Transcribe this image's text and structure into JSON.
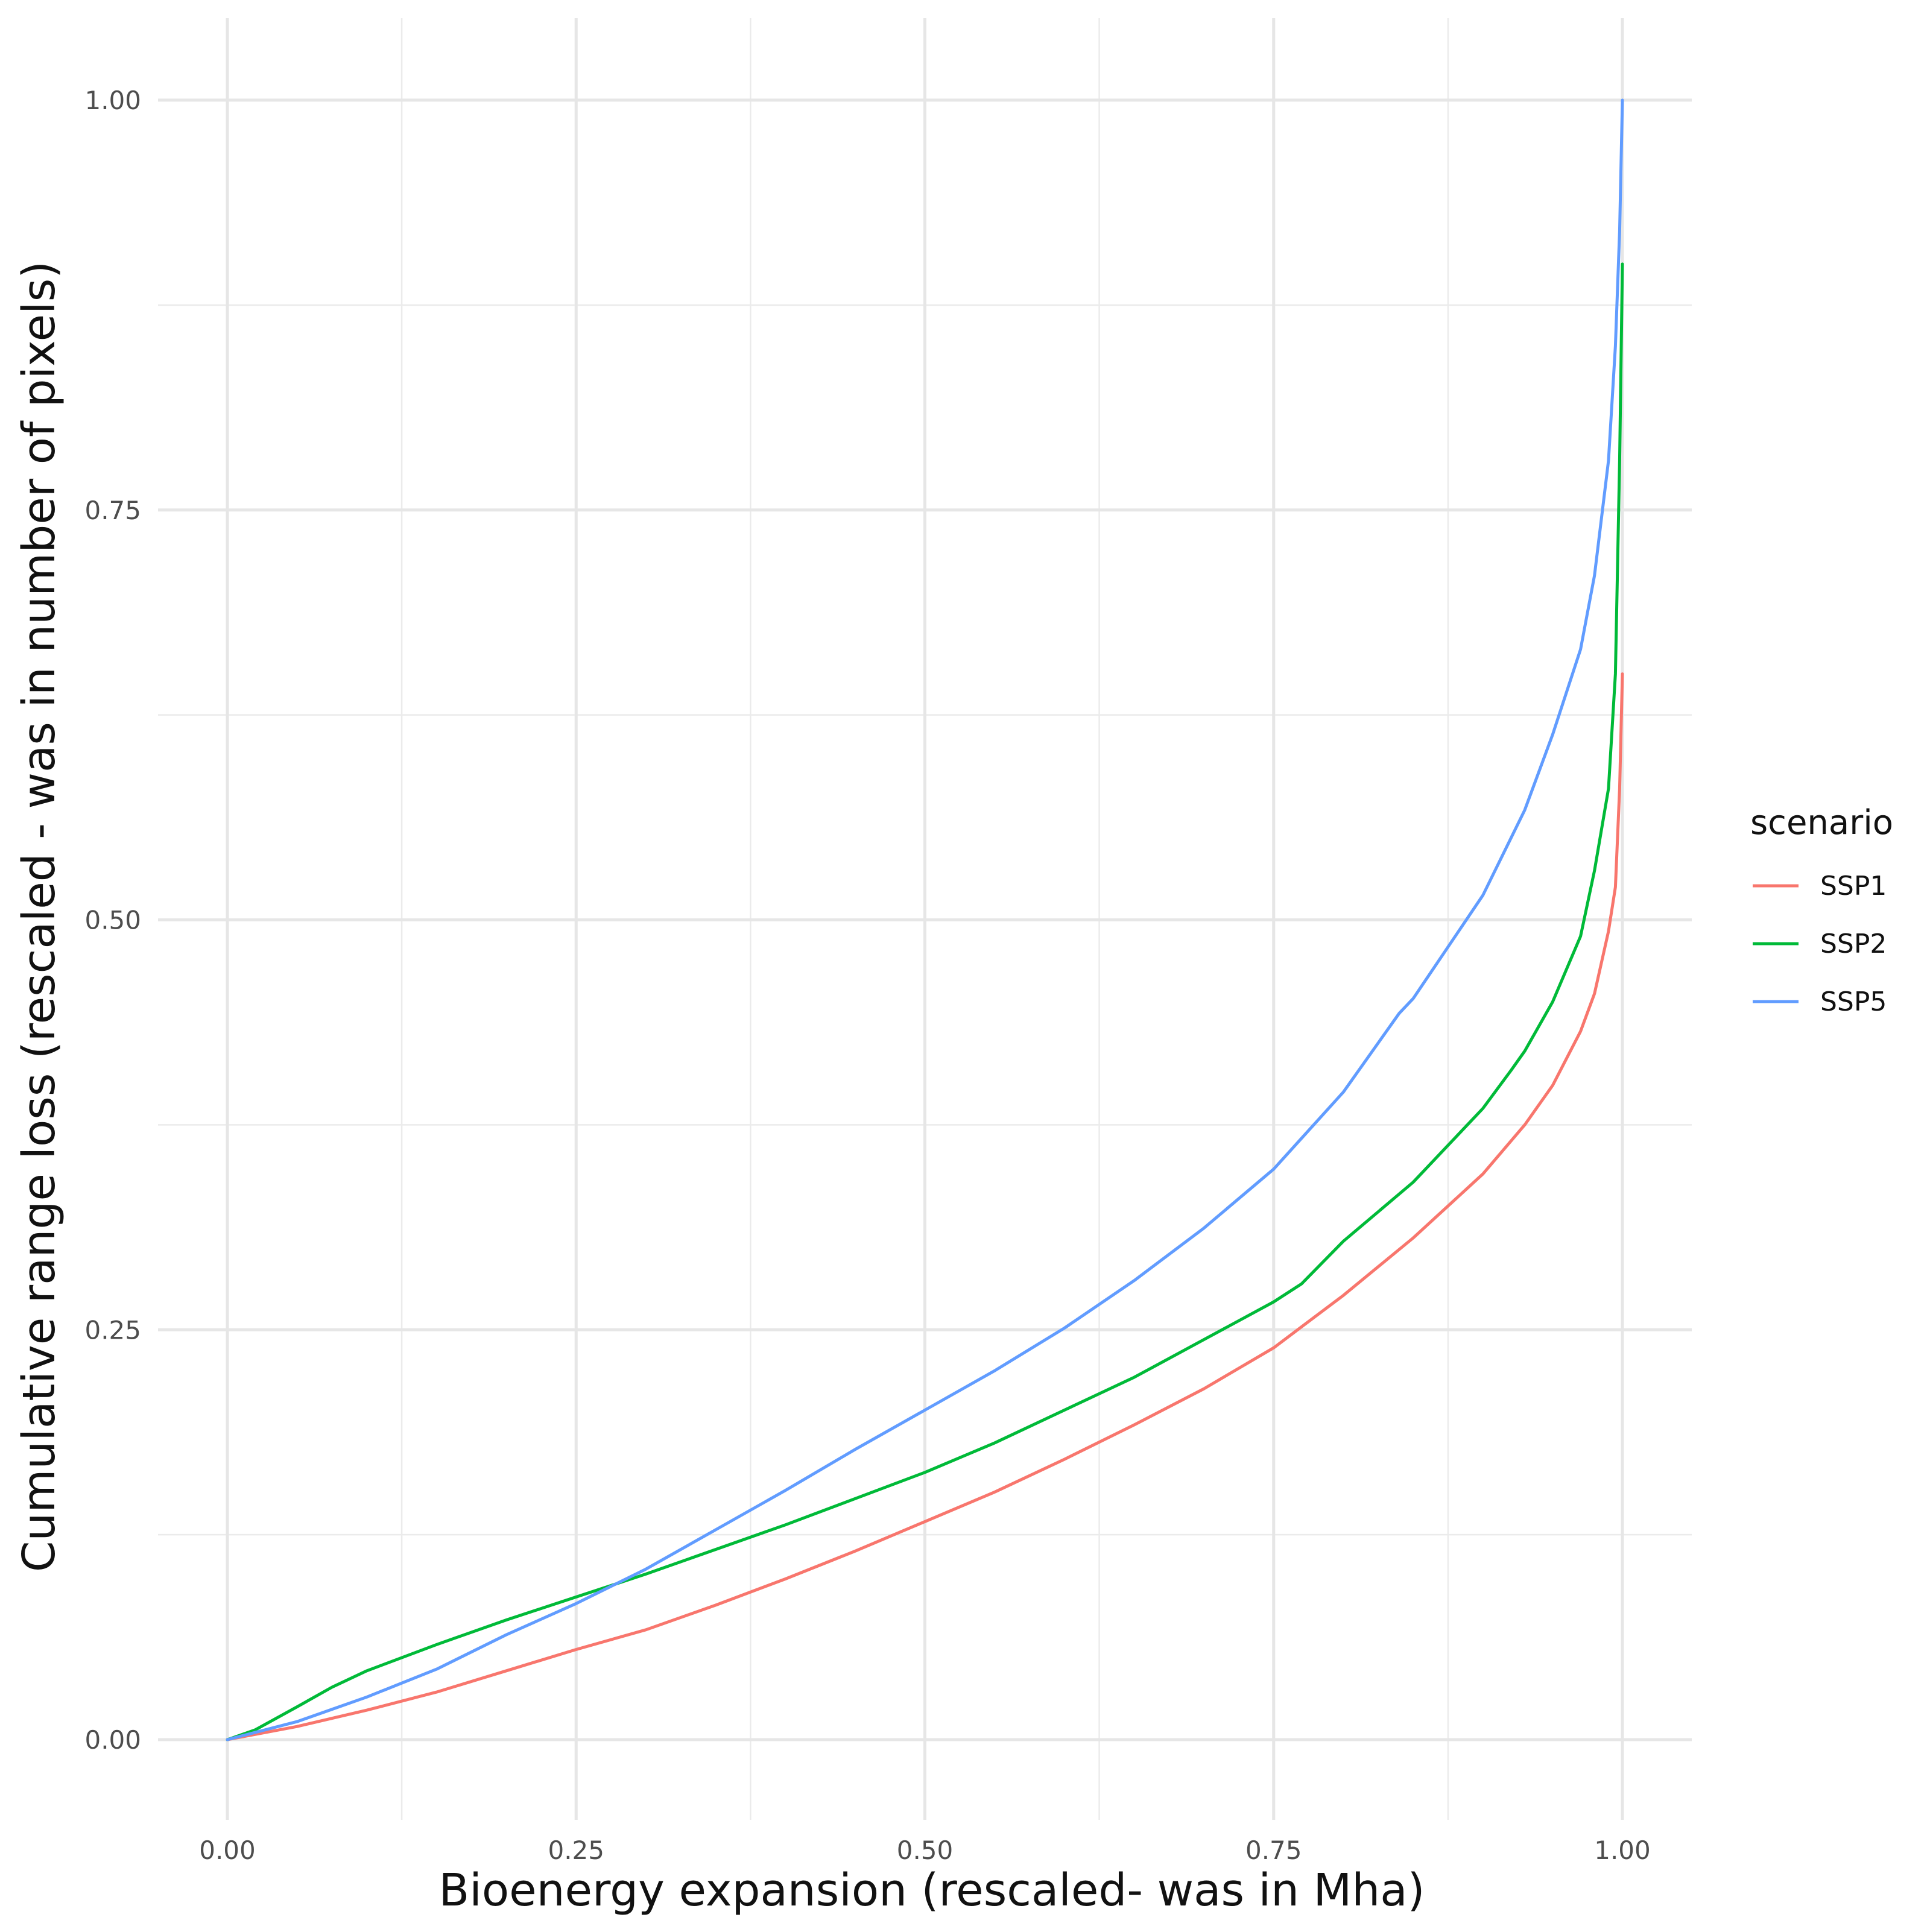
{
  "chart_data": {
    "type": "line",
    "title": "",
    "xlabel": "Bioenergy expansion (rescaled- was in Mha)",
    "ylabel": "Cumulative range loss (rescaled - was in number of pixels)",
    "xlim": [
      -0.05,
      1.05
    ],
    "ylim": [
      -0.05,
      1.05
    ],
    "x_ticks": [
      0.0,
      0.25,
      0.5,
      0.75,
      1.0
    ],
    "x_tick_labels": [
      "0.00",
      "0.25",
      "0.50",
      "0.75",
      "1.00"
    ],
    "y_ticks": [
      0.0,
      0.25,
      0.5,
      0.75,
      1.0
    ],
    "y_tick_labels": [
      "0.00",
      "0.25",
      "0.50",
      "0.75",
      "1.00"
    ],
    "x_minor_ticks": [
      0.125,
      0.375,
      0.625,
      0.875
    ],
    "y_minor_ticks": [
      0.125,
      0.375,
      0.625,
      0.875
    ],
    "grid": true,
    "legend": {
      "title": "scenario",
      "position": "right"
    },
    "series": [
      {
        "name": "SSP1",
        "color": "#F8766D",
        "x": [
          0.0,
          0.05,
          0.1,
          0.15,
          0.2,
          0.25,
          0.3,
          0.35,
          0.4,
          0.45,
          0.5,
          0.55,
          0.6,
          0.65,
          0.7,
          0.75,
          0.8,
          0.85,
          0.9,
          0.93,
          0.95,
          0.97,
          0.98,
          0.99,
          0.995,
          0.998,
          1.0
        ],
        "y": [
          0.0,
          0.008,
          0.018,
          0.029,
          0.042,
          0.055,
          0.067,
          0.082,
          0.098,
          0.115,
          0.133,
          0.151,
          0.171,
          0.192,
          0.214,
          0.239,
          0.271,
          0.306,
          0.345,
          0.375,
          0.399,
          0.432,
          0.455,
          0.493,
          0.52,
          0.58,
          0.65
        ]
      },
      {
        "name": "SSP2",
        "color": "#00BA38",
        "x": [
          0.0,
          0.02,
          0.05,
          0.075,
          0.1,
          0.15,
          0.2,
          0.25,
          0.3,
          0.35,
          0.4,
          0.45,
          0.5,
          0.55,
          0.6,
          0.65,
          0.7,
          0.75,
          0.77,
          0.8,
          0.85,
          0.9,
          0.92,
          0.93,
          0.95,
          0.97,
          0.98,
          0.99,
          0.995,
          0.998,
          1.0
        ],
        "y": [
          0.0,
          0.006,
          0.02,
          0.032,
          0.042,
          0.058,
          0.073,
          0.087,
          0.101,
          0.116,
          0.131,
          0.147,
          0.163,
          0.181,
          0.201,
          0.221,
          0.244,
          0.267,
          0.278,
          0.304,
          0.34,
          0.385,
          0.408,
          0.42,
          0.45,
          0.49,
          0.53,
          0.58,
          0.65,
          0.78,
          0.9
        ]
      },
      {
        "name": "SSP5",
        "color": "#619CFF",
        "x": [
          0.0,
          0.05,
          0.1,
          0.15,
          0.2,
          0.25,
          0.3,
          0.35,
          0.4,
          0.45,
          0.5,
          0.55,
          0.6,
          0.65,
          0.7,
          0.75,
          0.8,
          0.84,
          0.85,
          0.9,
          0.93,
          0.95,
          0.97,
          0.98,
          0.99,
          0.995,
          0.998,
          1.0
        ],
        "y": [
          0.0,
          0.011,
          0.026,
          0.043,
          0.064,
          0.083,
          0.104,
          0.128,
          0.152,
          0.177,
          0.201,
          0.225,
          0.251,
          0.28,
          0.312,
          0.348,
          0.395,
          0.443,
          0.452,
          0.515,
          0.567,
          0.613,
          0.665,
          0.71,
          0.78,
          0.85,
          0.92,
          1.0
        ]
      }
    ]
  }
}
